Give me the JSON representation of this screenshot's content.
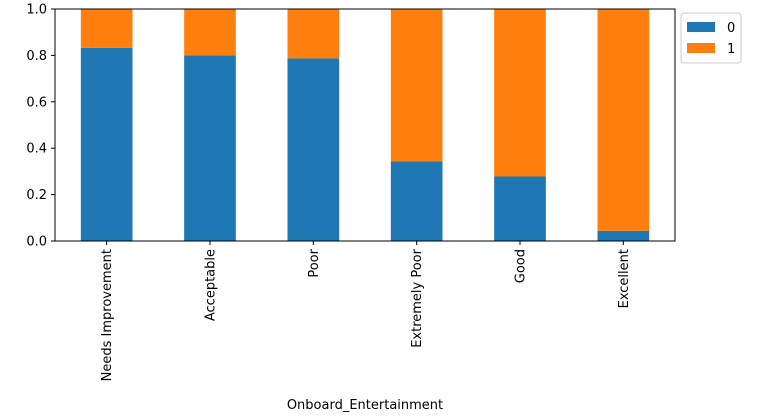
{
  "chart_data": {
    "type": "bar",
    "stacked": true,
    "title": "",
    "xlabel": "Onboard_Entertainment",
    "ylabel": "",
    "categories": [
      "Needs Improvement",
      "Acceptable",
      "Poor",
      "Extremely Poor",
      "Good",
      "Excellent"
    ],
    "series": [
      {
        "name": "0",
        "color": "#1f77b4",
        "values": [
          0.833,
          0.8,
          0.787,
          0.343,
          0.278,
          0.044
        ]
      },
      {
        "name": "1",
        "color": "#ff7f0e",
        "values": [
          0.167,
          0.2,
          0.213,
          0.657,
          0.722,
          0.956
        ]
      }
    ],
    "ylim": [
      0,
      1.0
    ],
    "yticks": [
      "0.0",
      "0.2",
      "0.4",
      "0.6",
      "0.8",
      "1.0"
    ],
    "legend_position": "outside-top-right",
    "grid": false
  }
}
